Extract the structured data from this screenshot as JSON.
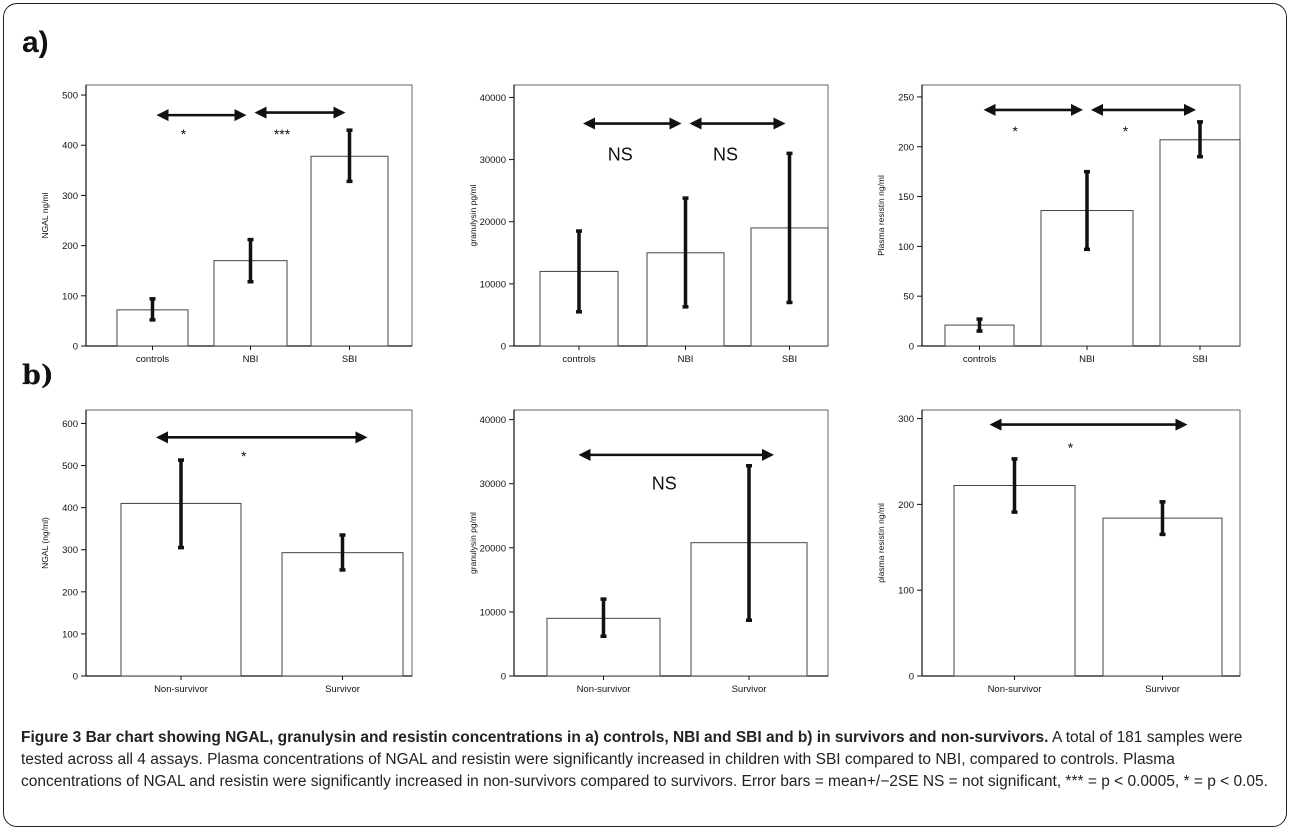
{
  "labels": {
    "a": "a)",
    "b": "b)"
  },
  "caption": {
    "title": "Figure 3 Bar chart showing NGAL, granulysin and resistin concentrations in a) controls, NBI and SBI and b) in survivors and non-survivors.",
    "body": "A total of 181 samples were tested across all 4 assays. Plasma concentrations of NGAL and resistin were significantly increased in children with SBI compared to NBI, compared to controls. Plasma concentrations of NGAL and resistin were significantly increased in non-survivors compared to survivors. Error bars = mean+/−2SE NS = not significant, *** = p < 0.0005, * = p < 0.05."
  },
  "chart_data": [
    {
      "type": "bar",
      "panel": "a",
      "ylabel": "NGAL ng/ml",
      "categories": [
        "controls",
        "NBI",
        "SBI"
      ],
      "values": [
        72,
        170,
        378
      ],
      "error_low": [
        52,
        128,
        328
      ],
      "error_high": [
        94,
        212,
        430
      ],
      "ylim": [
        0,
        520
      ],
      "yticks": [
        0,
        100,
        200,
        300,
        400,
        500
      ],
      "annotations": [
        {
          "from": 0,
          "to": 1,
          "y": 460,
          "text": "*",
          "text_y": 420
        },
        {
          "from": 1,
          "to": 2,
          "y": 465,
          "text": "***",
          "text_y": 420
        }
      ]
    },
    {
      "type": "bar",
      "panel": "a",
      "ylabel": "granulysin pg/ml",
      "categories": [
        "controls",
        "NBI",
        "SBI"
      ],
      "values": [
        12000,
        15000,
        19000
      ],
      "error_low": [
        5500,
        6300,
        7000
      ],
      "error_high": [
        18500,
        23800,
        31000
      ],
      "ylim": [
        0,
        42000
      ],
      "yticks": [
        0,
        10000,
        20000,
        30000,
        40000
      ],
      "annotations": [
        {
          "from": 0,
          "to": 1,
          "y": 35800,
          "text": "NS",
          "text_y": 30800
        },
        {
          "from": 1,
          "to": 2,
          "y": 35800,
          "text": "NS",
          "text_y": 30800
        }
      ]
    },
    {
      "type": "bar",
      "panel": "a",
      "ylabel": "Plasma resistin ng/ml",
      "categories": [
        "controls",
        "NBI",
        "SBI"
      ],
      "values": [
        21,
        136,
        207
      ],
      "error_low": [
        15,
        97,
        190
      ],
      "error_high": [
        27,
        175,
        225
      ],
      "ylim": [
        0,
        262
      ],
      "yticks": [
        0,
        50,
        100,
        150,
        200,
        250
      ],
      "annotations": [
        {
          "from": 0,
          "to": 1,
          "y": 237,
          "text": "*",
          "text_y": 215
        },
        {
          "from": 1,
          "to": 2,
          "y": 237,
          "text": "*",
          "text_y": 215
        }
      ]
    },
    {
      "type": "bar",
      "panel": "b",
      "ylabel": "NGAL (ng/ml)",
      "categories": [
        "Non-survivor",
        "Survivor"
      ],
      "values": [
        410,
        293
      ],
      "error_low": [
        305,
        252
      ],
      "error_high": [
        513,
        335
      ],
      "ylim": [
        0,
        632
      ],
      "yticks": [
        0,
        100,
        200,
        300,
        400,
        500,
        600
      ],
      "annotations": [
        {
          "from": 0,
          "to": 1,
          "y": 567,
          "text": "*",
          "text_y": 520
        }
      ]
    },
    {
      "type": "bar",
      "panel": "b",
      "ylabel": "granulysin pg/ml",
      "categories": [
        "Non-survivor",
        "Survivor"
      ],
      "values": [
        9000,
        20800
      ],
      "error_low": [
        6200,
        8700
      ],
      "error_high": [
        12000,
        32800
      ],
      "ylim": [
        0,
        41500
      ],
      "yticks": [
        0,
        10000,
        20000,
        30000,
        40000
      ],
      "annotations": [
        {
          "from": 0,
          "to": 1,
          "y": 34500,
          "text": "NS",
          "text_y": 30000
        }
      ]
    },
    {
      "type": "bar",
      "panel": "b",
      "ylabel": "plasma resistin ng/ml",
      "categories": [
        "Non-survivor",
        "Survivor"
      ],
      "values": [
        222,
        184
      ],
      "error_low": [
        191,
        165
      ],
      "error_high": [
        253,
        203
      ],
      "ylim": [
        0,
        310
      ],
      "yticks": [
        0,
        100,
        200,
        300
      ],
      "annotations": [
        {
          "from": 0,
          "to": 1,
          "y": 293,
          "text": "*",
          "text_y": 265
        }
      ]
    }
  ]
}
